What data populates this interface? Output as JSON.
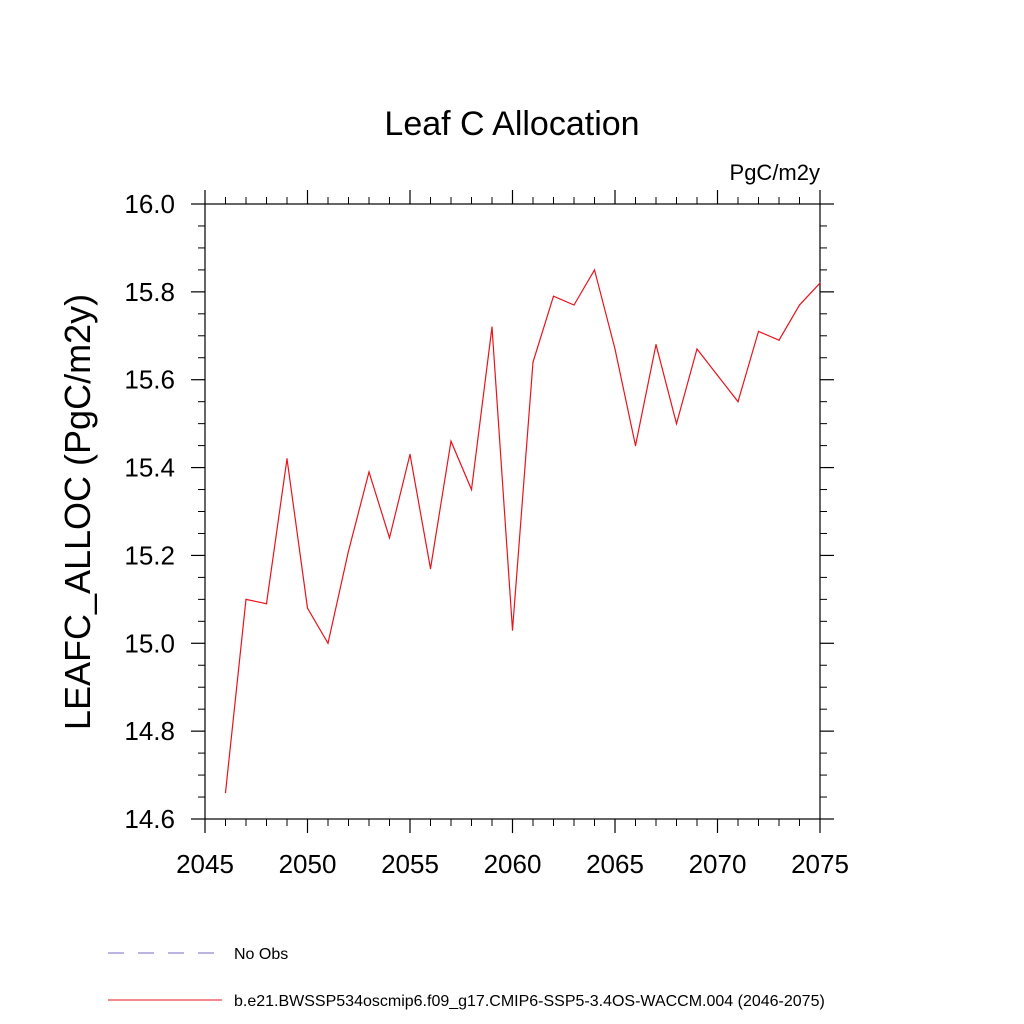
{
  "chart_data": {
    "type": "line",
    "title": "Leaf C Allocation",
    "units_label": "PgC/m2y",
    "ylabel": "LEAFC_ALLOC  (PgC/m2y)",
    "xlabel": "",
    "xlim": [
      2045,
      2075
    ],
    "ylim": [
      14.6,
      16.0
    ],
    "x_ticks": [
      2045,
      2050,
      2055,
      2060,
      2065,
      2070,
      2075
    ],
    "y_ticks": [
      "14.6",
      "14.8",
      "15.0",
      "15.2",
      "15.4",
      "15.6",
      "15.8",
      "16.0"
    ],
    "grid": false,
    "legend_position": "bottom-left",
    "series": [
      {
        "name": "b.e21.BWSSP534oscmip6.f09_g17.CMIP6-SSP5-3.4OS-WACCM.004 (2046-2075)",
        "color": "#e8141c",
        "style": "solid",
        "x": [
          2046,
          2047,
          2048,
          2049,
          2050,
          2051,
          2052,
          2053,
          2054,
          2055,
          2056,
          2057,
          2058,
          2059,
          2060,
          2061,
          2062,
          2063,
          2064,
          2065,
          2066,
          2067,
          2068,
          2069,
          2070,
          2071,
          2072,
          2073,
          2074,
          2075
        ],
        "values": [
          14.66,
          15.1,
          15.09,
          15.42,
          15.08,
          15.0,
          15.21,
          15.39,
          15.24,
          15.43,
          15.17,
          15.46,
          15.35,
          15.72,
          15.03,
          15.64,
          15.79,
          15.77,
          15.85,
          15.67,
          15.45,
          15.68,
          15.5,
          15.67,
          15.61,
          15.55,
          15.71,
          15.69,
          15.77,
          15.82
        ]
      }
    ],
    "legend": [
      {
        "label": "No Obs",
        "color": "#7b68c8",
        "style": "dashed"
      },
      {
        "label": "b.e21.BWSSP534oscmip6.f09_g17.CMIP6-SSP5-3.4OS-WACCM.004 (2046-2075)",
        "color": "#e8141c",
        "style": "solid"
      }
    ]
  }
}
